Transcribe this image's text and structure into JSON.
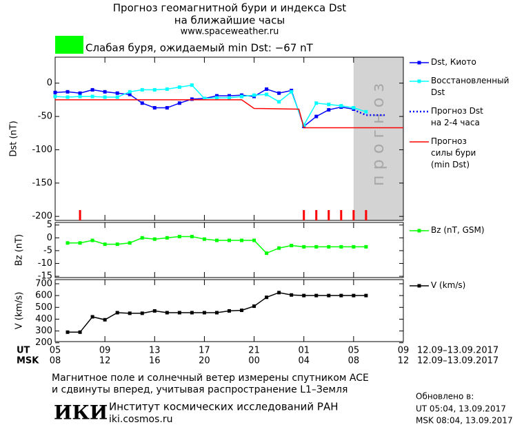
{
  "header": {
    "title": "Прогноз геомагнитной бури и индекса Dst",
    "subtitle": "на ближайшие часы",
    "url": "www.spaceweather.ru"
  },
  "status": {
    "color": "#00ff00",
    "text": "Слабая буря, ожидаемый min Dst: −67 nT"
  },
  "chart_data": [
    {
      "type": "line",
      "ylabel": "Dst (nT)",
      "xlim": [
        0,
        28
      ],
      "ylim": [
        -206,
        39
      ],
      "yticks": [
        0,
        -50,
        -100,
        -150,
        -200
      ],
      "forecast_region": {
        "label": "прогноз",
        "x": [
          24,
          28
        ],
        "color": "#d3d3d3"
      },
      "storm_markers": {
        "color": "#ff0000",
        "x": [
          2,
          20,
          21,
          22,
          23,
          24,
          25
        ]
      },
      "series": [
        {
          "name": "Dst, Киото",
          "color": "#0000ff",
          "marker": "square",
          "dash": false,
          "x": [
            0,
            1,
            2,
            3,
            4,
            5,
            6,
            7,
            8,
            9,
            10,
            11,
            12,
            13,
            14,
            15,
            16,
            17,
            18,
            19,
            20,
            21,
            22,
            23,
            24
          ],
          "values": [
            -14,
            -13,
            -15,
            -10,
            -13,
            -15,
            -17,
            -30,
            -37,
            -37,
            -30,
            -24,
            -23,
            -19,
            -19,
            -18,
            -20,
            -9,
            -15,
            -11,
            -65,
            -50,
            -40,
            -36,
            -39
          ]
        },
        {
          "name": "Восстановленный\nDst",
          "color": "#00ffff",
          "marker": "square",
          "dash": false,
          "x": [
            0,
            1,
            2,
            3,
            4,
            5,
            6,
            7,
            8,
            9,
            10,
            11,
            12,
            13,
            14,
            15,
            16,
            17,
            18,
            19,
            20,
            21,
            22,
            23,
            24,
            25
          ],
          "values": [
            -20,
            -21,
            -20,
            -20,
            -21,
            -21,
            -13,
            -10,
            -10,
            -9,
            -6,
            -3,
            -23,
            -22,
            -22,
            -20,
            -18,
            -17,
            -28,
            -13,
            -63,
            -30,
            -32,
            -34,
            -37,
            -43
          ]
        },
        {
          "name": "Прогноз Dst\nна 2-4 часа",
          "color": "#0000ff",
          "marker": "none",
          "dash": true,
          "x": [
            24,
            25,
            26.5
          ],
          "values": [
            -40,
            -48,
            -48
          ]
        },
        {
          "name": "Прогноз\nсилы бури\n(min Dst)",
          "color": "#ff0000",
          "marker": "none",
          "dash": false,
          "x": [
            0,
            15,
            16,
            19.6,
            20,
            28
          ],
          "values": [
            -25,
            -25,
            -38,
            -39,
            -67,
            -67
          ]
        }
      ]
    },
    {
      "type": "line",
      "ylabel": "Bz (nT)",
      "xlim": [
        0,
        28
      ],
      "ylim": [
        -15.5,
        6
      ],
      "yticks": [
        5,
        0,
        -5,
        -10,
        -15
      ],
      "series": [
        {
          "name": "Bz (nT, GSM)",
          "color": "#00ff00",
          "marker": "square",
          "dash": false,
          "x": [
            1,
            2,
            3,
            4,
            5,
            6,
            7,
            8,
            9,
            10,
            11,
            12,
            13,
            14,
            15,
            16,
            17,
            18,
            19,
            20,
            21,
            22,
            23,
            24,
            25
          ],
          "values": [
            -2,
            -2,
            -1,
            -2.5,
            -2.5,
            -2,
            0,
            -0.5,
            0,
            0.5,
            0.5,
            -0.5,
            -1,
            -1,
            -1,
            -1,
            -6,
            -4,
            -3,
            -3.5,
            -3.5,
            -3.5,
            -3.5,
            -3.5,
            -3.5
          ]
        }
      ]
    },
    {
      "type": "line",
      "ylabel": "V (km/s)",
      "xlim": [
        0,
        28
      ],
      "ylim": [
        210,
        735
      ],
      "yticks": [
        700,
        600,
        500,
        400,
        300,
        200
      ],
      "xlabel_ut": "UT",
      "xlabel_msk": "MSK",
      "date_range": "12.09–13.09.2017",
      "xticks": [
        {
          "value": 0,
          "label": "05"
        },
        {
          "value": 4,
          "label": "09"
        },
        {
          "value": 8,
          "label": "13"
        },
        {
          "value": 12,
          "label": "17"
        },
        {
          "value": 16,
          "label": "21"
        },
        {
          "value": 20,
          "label": "01"
        },
        {
          "value": 24,
          "label": "05"
        },
        {
          "value": 28,
          "label": "09"
        }
      ],
      "xticks_msk": [
        "08",
        "12",
        "16",
        "20",
        "00",
        "04",
        "08",
        "12"
      ],
      "series": [
        {
          "name": "V (km/s)",
          "color": "#000000",
          "marker": "square",
          "dash": false,
          "x": [
            1,
            2,
            3,
            4,
            5,
            6,
            7,
            8,
            9,
            10,
            11,
            12,
            13,
            14,
            15,
            16,
            17,
            18,
            19,
            20,
            21,
            22,
            23,
            24,
            25
          ],
          "values": [
            290,
            290,
            420,
            395,
            455,
            450,
            450,
            470,
            455,
            455,
            455,
            455,
            455,
            470,
            475,
            510,
            585,
            625,
            605,
            600,
            600,
            600,
            600,
            600,
            600
          ]
        }
      ]
    }
  ],
  "footer": {
    "note": [
      "Магнитное поле и солнечный ветер измерены спутником ACE",
      "и сдвинуты вперед, учитывая распространение L1–Земля"
    ],
    "logo": "ИКИ",
    "institute": "Институт космических исследований РАН",
    "institute_url": "iki.cosmos.ru",
    "updated_label": "Обновлено в:",
    "updated_ut": "UT  05:04, 13.09.2017",
    "updated_msk": "MSK 08:04, 13.09.2017"
  }
}
